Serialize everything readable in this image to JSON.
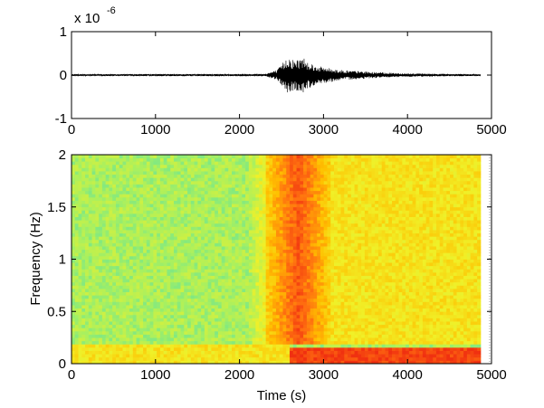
{
  "chart_data": [
    {
      "type": "line",
      "title": "",
      "xlabel": "",
      "ylabel": "",
      "xlim": [
        0,
        5000
      ],
      "ylim": [
        -1,
        1
      ],
      "y_exponent_label": "x 10",
      "y_exponent_value": "-6",
      "xticks": [
        "0",
        "1000",
        "2000",
        "3000",
        "4000",
        "5000"
      ],
      "yticks": [
        "-1",
        "0",
        "1"
      ],
      "series": [
        {
          "color": "#000000",
          "description_of_envelope": [
            {
              "x": 0,
              "amp": 0.02
            },
            {
              "x": 2300,
              "amp": 0.03
            },
            {
              "x": 2450,
              "amp": 0.12
            },
            {
              "x": 2580,
              "amp": 0.45
            },
            {
              "x": 2650,
              "amp": 0.35
            },
            {
              "x": 2760,
              "amp": 0.42
            },
            {
              "x": 2900,
              "amp": 0.22
            },
            {
              "x": 3200,
              "amp": 0.12
            },
            {
              "x": 3600,
              "amp": 0.07
            },
            {
              "x": 4000,
              "amp": 0.04
            },
            {
              "x": 4870,
              "amp": 0.02
            }
          ]
        }
      ]
    },
    {
      "type": "heatmap",
      "title": "",
      "xlabel": "Time (s)",
      "ylabel": "Frequency (Hz)",
      "xlim": [
        0,
        5000
      ],
      "ylim": [
        0,
        2
      ],
      "xticks": [
        "0",
        "1000",
        "2000",
        "3000",
        "4000",
        "5000"
      ],
      "yticks": [
        "0",
        "0.5",
        "1",
        "1.5",
        "2"
      ],
      "data_extent_x": [
        0,
        4870
      ],
      "colormap": [
        "#00a0ff",
        "#30d8c8",
        "#a8f060",
        "#f0f028",
        "#ffc000",
        "#ff7010",
        "#f03010"
      ],
      "features": [
        {
          "name": "background",
          "x": [
            0,
            2300
          ],
          "y": [
            0.2,
            2.0
          ],
          "level": 0.35
        },
        {
          "name": "low-frequency band (pre-event)",
          "x": [
            0,
            2600
          ],
          "y": [
            0.0,
            0.2
          ],
          "level": 0.55
        },
        {
          "name": "event burst",
          "x": [
            2300,
            3100
          ],
          "y": [
            0.2,
            2.0
          ],
          "level": 0.85
        },
        {
          "name": "post-event",
          "x": [
            3100,
            4870
          ],
          "y": [
            0.2,
            2.0
          ],
          "level": 0.55
        },
        {
          "name": "low-frequency band (post-event)",
          "x": [
            2600,
            4870
          ],
          "y": [
            0.0,
            0.15
          ],
          "level": 0.95
        }
      ]
    }
  ]
}
